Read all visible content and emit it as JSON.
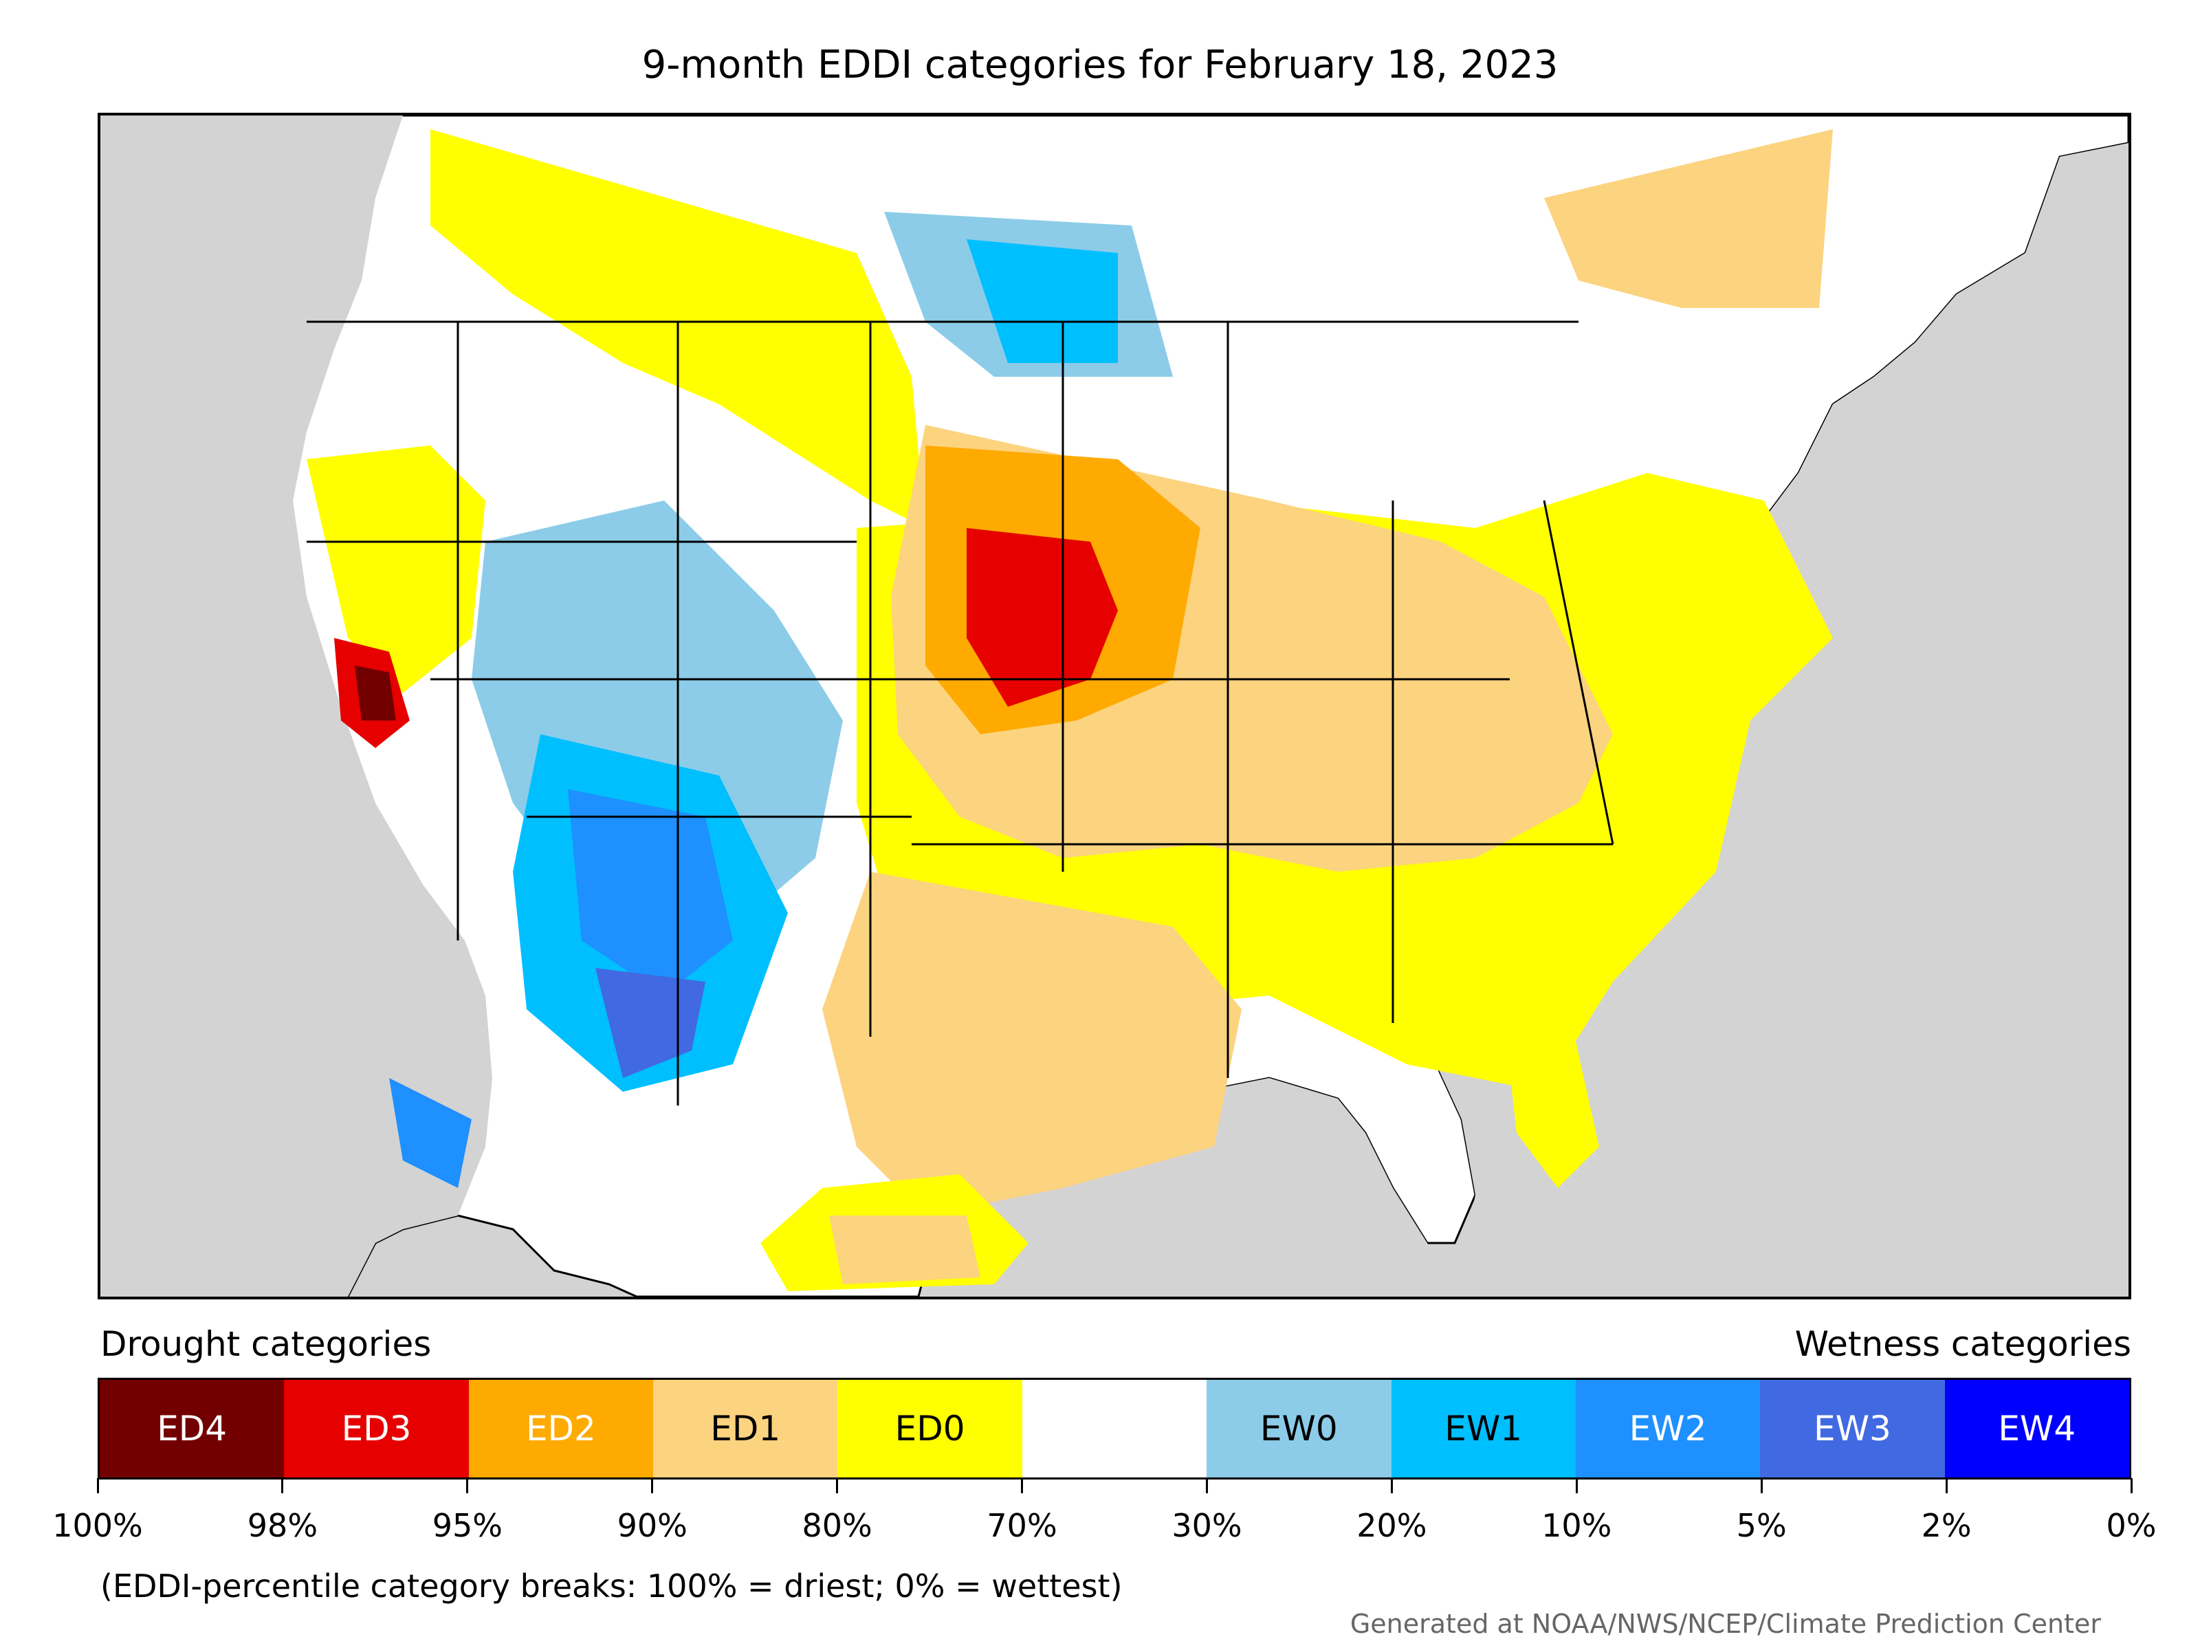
{
  "title": "9-month EDDI categories for February 18, 2023",
  "legend": {
    "left_heading": "Drought categories",
    "right_heading": "Wetness categories",
    "categories": [
      {
        "label": "ED4",
        "color": "#730000",
        "text_color": "#ffffff"
      },
      {
        "label": "ED3",
        "color": "#e60000",
        "text_color": "#ffffff"
      },
      {
        "label": "ED2",
        "color": "#ffaa00",
        "text_color": "#ffffff"
      },
      {
        "label": "ED1",
        "color": "#fcd37f",
        "text_color": "#000000"
      },
      {
        "label": "ED0",
        "color": "#ffff00",
        "text_color": "#000000"
      },
      {
        "label": "",
        "color": "#ffffff",
        "text_color": "#000000"
      },
      {
        "label": "EW0",
        "color": "#8ccce9",
        "text_color": "#000000"
      },
      {
        "label": "EW1",
        "color": "#00bfff",
        "text_color": "#000000"
      },
      {
        "label": "EW2",
        "color": "#1e90ff",
        "text_color": "#ffffff"
      },
      {
        "label": "EW3",
        "color": "#4169e1",
        "text_color": "#ffffff"
      },
      {
        "label": "EW4",
        "color": "#0000ff",
        "text_color": "#ffffff"
      }
    ],
    "breaks": [
      "100%",
      "98%",
      "95%",
      "90%",
      "80%",
      "70%",
      "30%",
      "20%",
      "10%",
      "5%",
      "2%",
      "0%"
    ]
  },
  "note": "(EDDI-percentile category breaks: 100% = driest; 0% = wettest)",
  "credit": "Generated at NOAA/NWS/NCEP/Climate Prediction Center",
  "map": {
    "background_color": "#d3d3d3",
    "land_color": "#ffffff"
  }
}
